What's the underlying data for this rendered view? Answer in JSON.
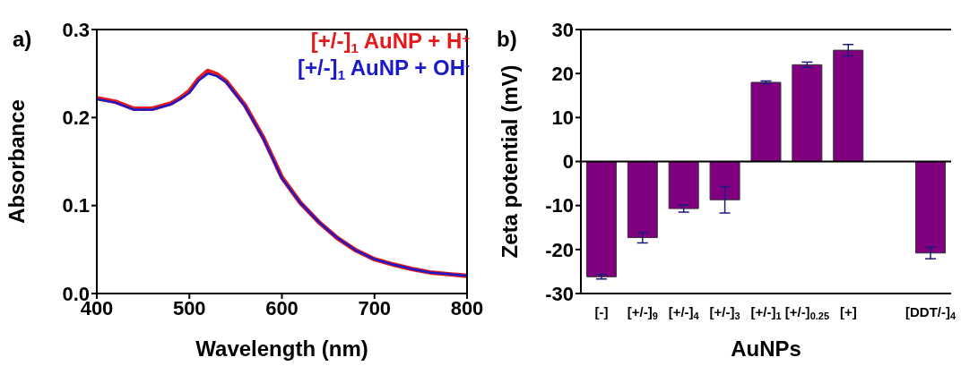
{
  "chart_data": [
    {
      "type": "line",
      "annotations": [
        "a)"
      ],
      "xlabel": "Wavelength (nm)",
      "ylabel": "Absorbance",
      "xlim": [
        400,
        800
      ],
      "xticks": [
        400,
        500,
        600,
        700,
        800
      ],
      "ylim": [
        0.0,
        0.3
      ],
      "yticks": [
        {
          "value": 0,
          "label": "0.0"
        },
        0.1,
        0.2,
        0.3
      ],
      "legend": "top right",
      "marker": "none",
      "line_style": "solid",
      "x": [
        400,
        420,
        440,
        460,
        480,
        490,
        500,
        510,
        520,
        530,
        540,
        560,
        580,
        600,
        620,
        640,
        660,
        680,
        700,
        720,
        740,
        760,
        780,
        800
      ],
      "series": [
        {
          "name": "[+/-]$_{1}$ AuNP + H$^{+}$",
          "color": "#e41a1c",
          "values": [
            0.222,
            0.218,
            0.21,
            0.21,
            0.216,
            0.222,
            0.23,
            0.244,
            0.253,
            0.249,
            0.241,
            0.214,
            0.177,
            0.132,
            0.103,
            0.081,
            0.063,
            0.049,
            0.039,
            0.033,
            0.028,
            0.024,
            0.022,
            0.02
          ]
        },
        {
          "name": "[+/-]$_{1}$ AuNP + OH$^{-}$",
          "color": "#1a1acc",
          "values": [
            0.221,
            0.217,
            0.209,
            0.209,
            0.215,
            0.221,
            0.228,
            0.242,
            0.25,
            0.247,
            0.24,
            0.213,
            0.176,
            0.131,
            0.103,
            0.081,
            0.063,
            0.049,
            0.039,
            0.033,
            0.028,
            0.024,
            0.022,
            0.02
          ]
        }
      ]
    },
    {
      "type": "bar",
      "annotations": [
        "b)"
      ],
      "xlabel": "AuNPs",
      "ylabel": "Zeta potential (mV)",
      "ylim": [
        -30,
        30
      ],
      "yticks": [
        -30,
        -20,
        -10,
        0,
        10,
        20,
        30
      ],
      "categories": [
        "[-]",
        "[+/-]$_{9}$",
        "[+/-]$_{4}$",
        "[+/-]$_{3}$",
        "[+/-]$_{1}$",
        "[+/-]$_{0.25}$",
        "[+]",
        null,
        "[DDT/-]$_{4}$"
      ],
      "values": [
        -26.2,
        -17.3,
        -10.7,
        -8.7,
        18.0,
        22.0,
        25.3,
        null,
        -20.8
      ],
      "errors": [
        0.5,
        1.2,
        0.8,
        3.0,
        0.3,
        0.6,
        1.3,
        null,
        1.3
      ],
      "color": "#800080",
      "ref_lines": [
        {
          "axis": "y",
          "value": 0,
          "color": "#000000"
        }
      ]
    }
  ]
}
